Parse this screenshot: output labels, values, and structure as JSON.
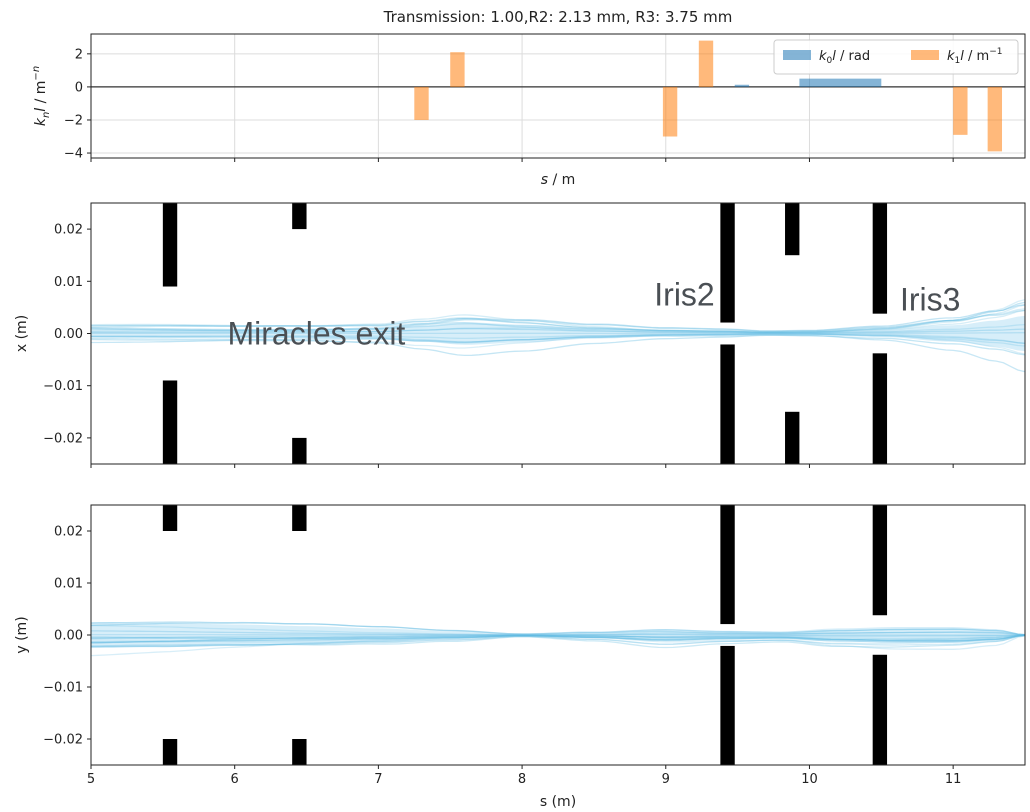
{
  "chart_data": [
    {
      "type": "bar",
      "title": "Transmission: 1.00,R2: 2.13 mm, R3: 3.75 mm",
      "xlabel": "s / m",
      "ylabel": "k_n l / m^-n",
      "xlim": [
        5,
        11.5
      ],
      "ylim": [
        -4.3,
        3.2
      ],
      "yticks": [
        2,
        0,
        -2,
        -4
      ],
      "grid": true,
      "legend_position": "top-right",
      "series": [
        {
          "name": "k0l / rad",
          "color": "#1f77b4",
          "bars": [
            {
              "x0": 9.48,
              "x1": 9.58,
              "value": 0.13
            },
            {
              "x0": 9.93,
              "x1": 10.5,
              "value": 0.5
            }
          ]
        },
        {
          "name": "k1l / m-1",
          "color": "#ff7f0e",
          "bars": [
            {
              "x0": 7.25,
              "x1": 7.35,
              "value": -2.0
            },
            {
              "x0": 7.5,
              "x1": 7.6,
              "value": 2.1
            },
            {
              "x0": 8.98,
              "x1": 9.08,
              "value": -3.0
            },
            {
              "x0": 9.23,
              "x1": 9.33,
              "value": 2.8
            },
            {
              "x0": 11.0,
              "x1": 11.1,
              "value": -2.9
            },
            {
              "x0": 11.24,
              "x1": 11.34,
              "value": -3.9
            }
          ]
        }
      ]
    },
    {
      "type": "line",
      "xlabel": "",
      "ylabel": "x (m)",
      "xlim": [
        5,
        11.5
      ],
      "ylim": [
        -0.025,
        0.025
      ],
      "yticks": [
        0.02,
        0.01,
        0.0,
        -0.01,
        -0.02
      ],
      "ytick_labels": [
        "0.02",
        "0.01",
        "0.00",
        "−0.01",
        "−0.02"
      ],
      "grid": false,
      "annotations": [
        {
          "text": "Miracles exit",
          "x": 5.95,
          "y": 0.0
        },
        {
          "text": "Iris2",
          "x": 8.92,
          "y": 0.0075
        },
        {
          "text": "Iris3",
          "x": 10.63,
          "y": 0.0065
        }
      ],
      "apertures": [
        {
          "s0": 5.5,
          "s1": 5.6,
          "half_gap": 0.009
        },
        {
          "s0": 6.4,
          "s1": 6.5,
          "half_gap": 0.02
        },
        {
          "s0": 9.38,
          "s1": 9.48,
          "half_gap": 0.0021
        },
        {
          "s0": 9.83,
          "s1": 9.93,
          "half_gap": 0.015
        },
        {
          "s0": 10.44,
          "s1": 10.54,
          "half_gap": 0.0038
        }
      ],
      "envelope": {
        "s": [
          5.0,
          5.5,
          6.0,
          6.5,
          7.0,
          7.3,
          7.6,
          8.0,
          8.5,
          9.0,
          9.4,
          9.7,
          10.0,
          10.5,
          11.0,
          11.3,
          11.5
        ],
        "half_width": [
          0.0018,
          0.0018,
          0.0017,
          0.0018,
          0.0022,
          0.0035,
          0.0048,
          0.0038,
          0.0022,
          0.0012,
          0.0009,
          0.0005,
          0.0006,
          0.0015,
          0.0035,
          0.0055,
          0.0075
        ]
      },
      "trajectories": 16
    },
    {
      "type": "line",
      "xlabel": "s (m)",
      "ylabel": "y (m)",
      "xlim": [
        5,
        11.5
      ],
      "ylim": [
        -0.025,
        0.025
      ],
      "xticks": [
        5,
        6,
        7,
        8,
        9,
        10,
        11
      ],
      "yticks": [
        0.02,
        0.01,
        0.0,
        -0.01,
        -0.02
      ],
      "ytick_labels": [
        "0.02",
        "0.01",
        "0.00",
        "−0.01",
        "−0.02"
      ],
      "grid": false,
      "apertures": [
        {
          "s0": 5.5,
          "s1": 5.6,
          "half_gap": 0.02
        },
        {
          "s0": 6.4,
          "s1": 6.5,
          "half_gap": 0.02
        },
        {
          "s0": 9.38,
          "s1": 9.48,
          "half_gap": 0.0021
        },
        {
          "s0": 10.44,
          "s1": 10.54,
          "half_gap": 0.0038
        }
      ],
      "envelope": {
        "s": [
          5.0,
          5.5,
          6.0,
          6.5,
          7.0,
          7.5,
          8.0,
          8.5,
          9.0,
          9.4,
          9.8,
          10.2,
          10.6,
          11.0,
          11.3,
          11.5
        ],
        "half_width": [
          0.0055,
          0.0052,
          0.0045,
          0.0038,
          0.0028,
          0.0016,
          0.0004,
          0.0012,
          0.0025,
          0.0018,
          0.0015,
          0.0028,
          0.0034,
          0.0034,
          0.0025,
          0.0002
        ]
      },
      "trajectories": 16
    }
  ]
}
